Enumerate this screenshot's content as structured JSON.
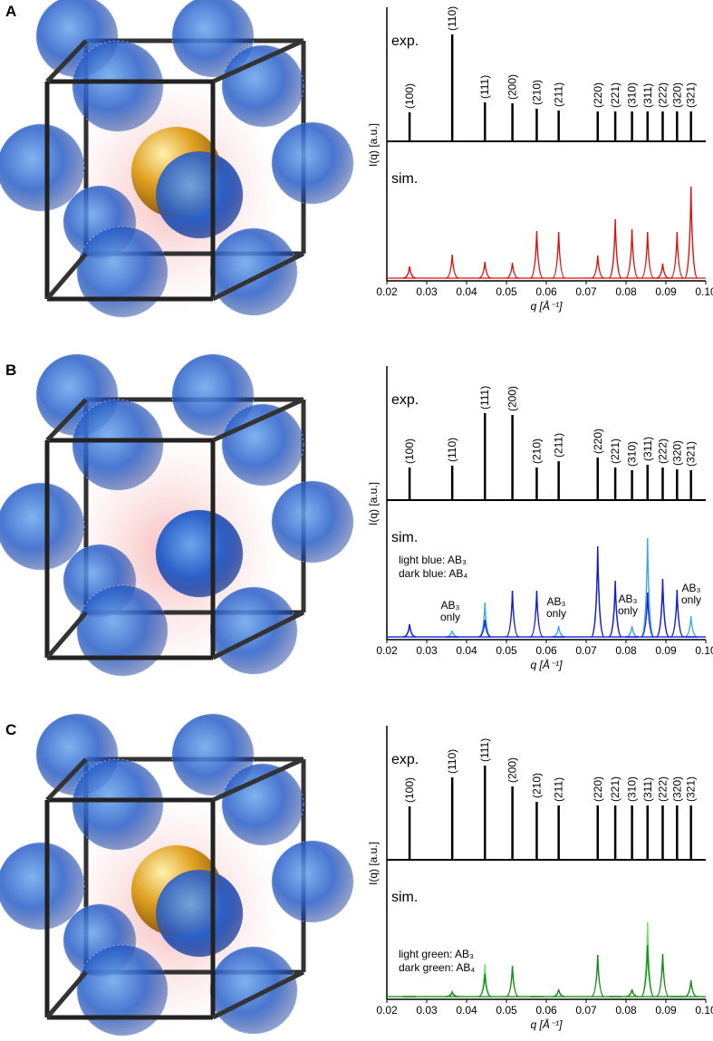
{
  "chart_data": [
    {
      "type": "peaks",
      "panel": "A",
      "exp_label": "exp.",
      "sim_label": "sim.",
      "xlabel": "q [Å⁻¹]",
      "ylabel": "I(q) [a.u.]",
      "xlim": [
        0.02,
        0.1
      ],
      "xticks": [
        0.02,
        0.03,
        0.04,
        0.05,
        0.06,
        0.07,
        0.08,
        0.09,
        {
          "value": 0.1,
          "label": "0.10"
        }
      ],
      "exp": {
        "categories": [
          "(100)",
          "(110)",
          "(111)",
          "(200)",
          "(210)",
          "(211)",
          "(220)",
          "(221)",
          "(310)",
          "(311)",
          "(222)",
          "(320)",
          "(321)"
        ],
        "x": [
          0.0257,
          0.0364,
          0.0446,
          0.0515,
          0.0576,
          0.0631,
          0.0729,
          0.0773,
          0.0815,
          0.0854,
          0.0892,
          0.0928,
          0.0963
        ],
        "values": [
          32,
          118,
          43,
          42,
          36,
          34,
          33,
          33,
          33,
          33,
          33,
          33,
          33
        ],
        "color": "#000000"
      },
      "sim": {
        "x": [
          0.0257,
          0.0364,
          0.0446,
          0.0515,
          0.0576,
          0.0631,
          0.0729,
          0.0773,
          0.0815,
          0.0854,
          0.0892,
          0.0928,
          0.0963
        ],
        "series": [
          {
            "color": "#e01010",
            "values": [
              13,
              26,
              18,
              17,
              52,
              51,
              25,
              65,
              54,
              51,
              16,
              51,
              101
            ]
          }
        ]
      }
    },
    {
      "type": "peaks",
      "panel": "B",
      "exp_label": "exp.",
      "sim_label": "sim.",
      "xlabel": "q [Å⁻¹]",
      "ylabel": "I(q) [a.u.]",
      "xlim": [
        0.02,
        0.1
      ],
      "xticks": [
        0.02,
        0.03,
        0.04,
        0.05,
        0.06,
        0.07,
        0.08,
        0.09,
        {
          "value": 0.1,
          "label": "0.10"
        }
      ],
      "exp": {
        "categories": [
          "(100)",
          "(110)",
          "(111)",
          "(200)",
          "(210)",
          "(211)",
          "(220)",
          "(221)",
          "(310)",
          "(311)",
          "(222)",
          "(320)",
          "(321)"
        ],
        "x": [
          0.0257,
          0.0364,
          0.0446,
          0.0515,
          0.0576,
          0.0631,
          0.0729,
          0.0773,
          0.0815,
          0.0854,
          0.0892,
          0.0928,
          0.0963
        ],
        "values": [
          36,
          38,
          96,
          94,
          36,
          43,
          47,
          36,
          33,
          39,
          36,
          34,
          33
        ],
        "color": "#000000"
      },
      "sim": {
        "x": [
          0.0257,
          0.0364,
          0.0446,
          0.0515,
          0.0576,
          0.0631,
          0.0729,
          0.0773,
          0.0815,
          0.0854,
          0.0892,
          0.0928,
          0.0963
        ],
        "series": [
          {
            "name": "light blue: AB₃",
            "color": "#3aa8e8",
            "values": [
              14,
              7,
              38,
              51,
              51,
              12,
              100,
              62,
              12,
              109,
              64,
              52,
              23
            ]
          },
          {
            "name": "dark blue: AB₄",
            "color": "#1a1ad8",
            "values": [
              14,
              0,
              19,
              51,
              51,
              0,
              100,
              62,
              0,
              49,
              64,
              52,
              0
            ]
          }
        ]
      },
      "annotations": [
        [
          "AB₃",
          "only"
        ],
        [
          "AB₃",
          "only"
        ],
        [
          "AB₃",
          "only"
        ],
        [
          "AB₃",
          "only"
        ]
      ]
    },
    {
      "type": "peaks",
      "panel": "C",
      "exp_label": "exp.",
      "sim_label": "sim.",
      "xlabel": "q [Å⁻¹]",
      "ylabel": "I(q) [a.u.]",
      "xlim": [
        0.02,
        0.1
      ],
      "xticks": [
        0.02,
        0.03,
        0.04,
        0.05,
        0.06,
        0.07,
        0.08,
        0.09,
        {
          "value": 0.1,
          "label": "0.10"
        }
      ],
      "exp": {
        "categories": [
          "(100)",
          "(110)",
          "(111)",
          "(200)",
          "(210)",
          "(211)",
          "(220)",
          "(221)",
          "(310)",
          "(311)",
          "(222)",
          "(320)",
          "(321)"
        ],
        "x": [
          0.0257,
          0.0364,
          0.0446,
          0.0515,
          0.0576,
          0.0631,
          0.0729,
          0.0773,
          0.0815,
          0.0854,
          0.0892,
          0.0928,
          0.0963
        ],
        "values": [
          59,
          91,
          104,
          81,
          64,
          60,
          60,
          60,
          60,
          60,
          60,
          60,
          60
        ],
        "color": "#000000"
      },
      "sim": {
        "x": [
          0.0257,
          0.0364,
          0.0446,
          0.0515,
          0.0576,
          0.0631,
          0.0729,
          0.0773,
          0.0815,
          0.0854,
          0.0892,
          0.0928,
          0.0963
        ],
        "series": [
          {
            "name": "light green: AB₃",
            "color": "#66e066",
            "values": [
              0,
              5,
              36,
              34,
              0,
              8,
              46,
              0,
              8,
              82,
              47,
              0,
              18
            ]
          },
          {
            "name": "dark green: AB₄",
            "color": "#1a8a1a",
            "values": [
              0,
              5,
              25,
              34,
              0,
              8,
              46,
              0,
              8,
              57,
              47,
              0,
              18
            ]
          }
        ]
      }
    }
  ]
}
